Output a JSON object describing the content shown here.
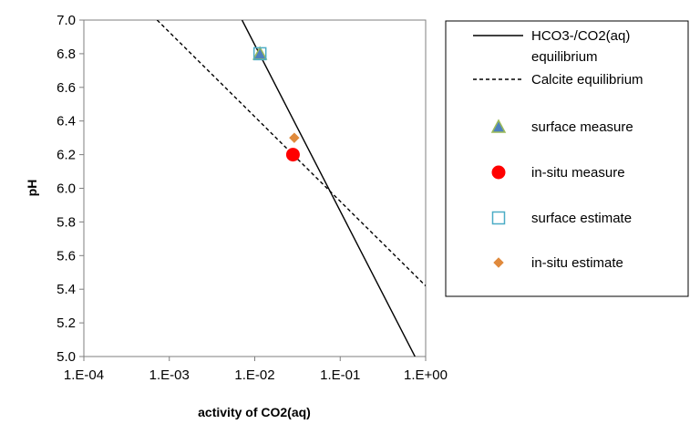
{
  "chart_data": {
    "type": "scatter",
    "title": "",
    "xlabel": "activity of CO2(aq)",
    "ylabel": "pH",
    "xscale": "log",
    "xlim": [
      0.0001,
      1
    ],
    "ylim": [
      5.0,
      7.0
    ],
    "x_tick_values": [
      0.0001,
      0.001,
      0.01,
      0.1,
      1
    ],
    "x_tick_labels": [
      "1.E-04",
      "1.E-03",
      "1.E-02",
      "1.E-01",
      "1.E+00"
    ],
    "y_tick_values": [
      5.0,
      5.2,
      5.4,
      5.6,
      5.8,
      6.0,
      6.2,
      6.4,
      6.6,
      6.8,
      7.0
    ],
    "y_tick_labels": [
      "5.0",
      "5.2",
      "5.4",
      "5.6",
      "5.8",
      "6.0",
      "6.2",
      "6.4",
      "6.6",
      "6.8",
      "7.0"
    ],
    "grid": false,
    "legend_position": "right",
    "lines": [
      {
        "name": "HCO3-/CO2(aq) equilibrium",
        "legend_lines": [
          "HCO3-/CO2(aq)",
          "equilibrium"
        ],
        "style": "solid",
        "color": "#000000",
        "x": [
          0.0071,
          0.75
        ],
        "y": [
          7.0,
          5.0
        ]
      },
      {
        "name": "Calcite equilibrium",
        "legend_lines": [
          "Calcite equilibrium"
        ],
        "style": "dashed",
        "color": "#000000",
        "x": [
          0.00072,
          1.0
        ],
        "y": [
          7.0,
          5.42
        ]
      }
    ],
    "series": [
      {
        "name": "surface measure",
        "marker": "triangle",
        "fill": "#4f81bd",
        "stroke": "#9bbb59",
        "x": [
          0.0115
        ],
        "y": [
          6.8
        ]
      },
      {
        "name": "in-situ measure",
        "marker": "circle",
        "fill": "#ff0000",
        "stroke": "#ff0000",
        "x": [
          0.028
        ],
        "y": [
          6.2
        ]
      },
      {
        "name": "surface estimate",
        "marker": "square",
        "fill": "none",
        "stroke": "#4bacc6",
        "x": [
          0.0115
        ],
        "y": [
          6.8
        ]
      },
      {
        "name": "in-situ estimate",
        "marker": "diamond",
        "fill": "#e08a3c",
        "stroke": "#e08a3c",
        "x": [
          0.029
        ],
        "y": [
          6.3
        ]
      }
    ]
  }
}
